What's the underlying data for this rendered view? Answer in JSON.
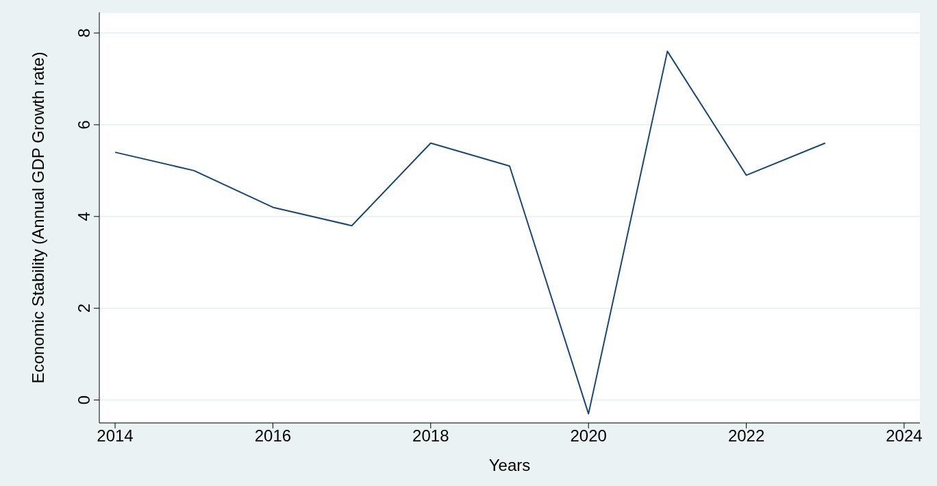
{
  "chart_data": {
    "type": "line",
    "xlabel": "Years",
    "ylabel": "Economic Stability (Annual GDP Growth rate)",
    "x": [
      2014,
      2015,
      2016,
      2017,
      2018,
      2019,
      2020,
      2021,
      2022,
      2023
    ],
    "series": [
      {
        "color": "#1a476f",
        "values": [
          5.4,
          5.0,
          4.2,
          3.8,
          5.6,
          5.1,
          -0.3,
          7.6,
          4.9,
          5.6
        ]
      }
    ],
    "xlim": [
      2013.8,
      2024.2
    ],
    "xticks": [
      2014,
      2016,
      2018,
      2020,
      2022,
      2024
    ],
    "ylim": [
      -0.5,
      8.45
    ],
    "yticks": [
      0,
      2,
      4,
      6,
      8
    ],
    "grid": "y",
    "marker": "none",
    "line_style": "solid"
  }
}
